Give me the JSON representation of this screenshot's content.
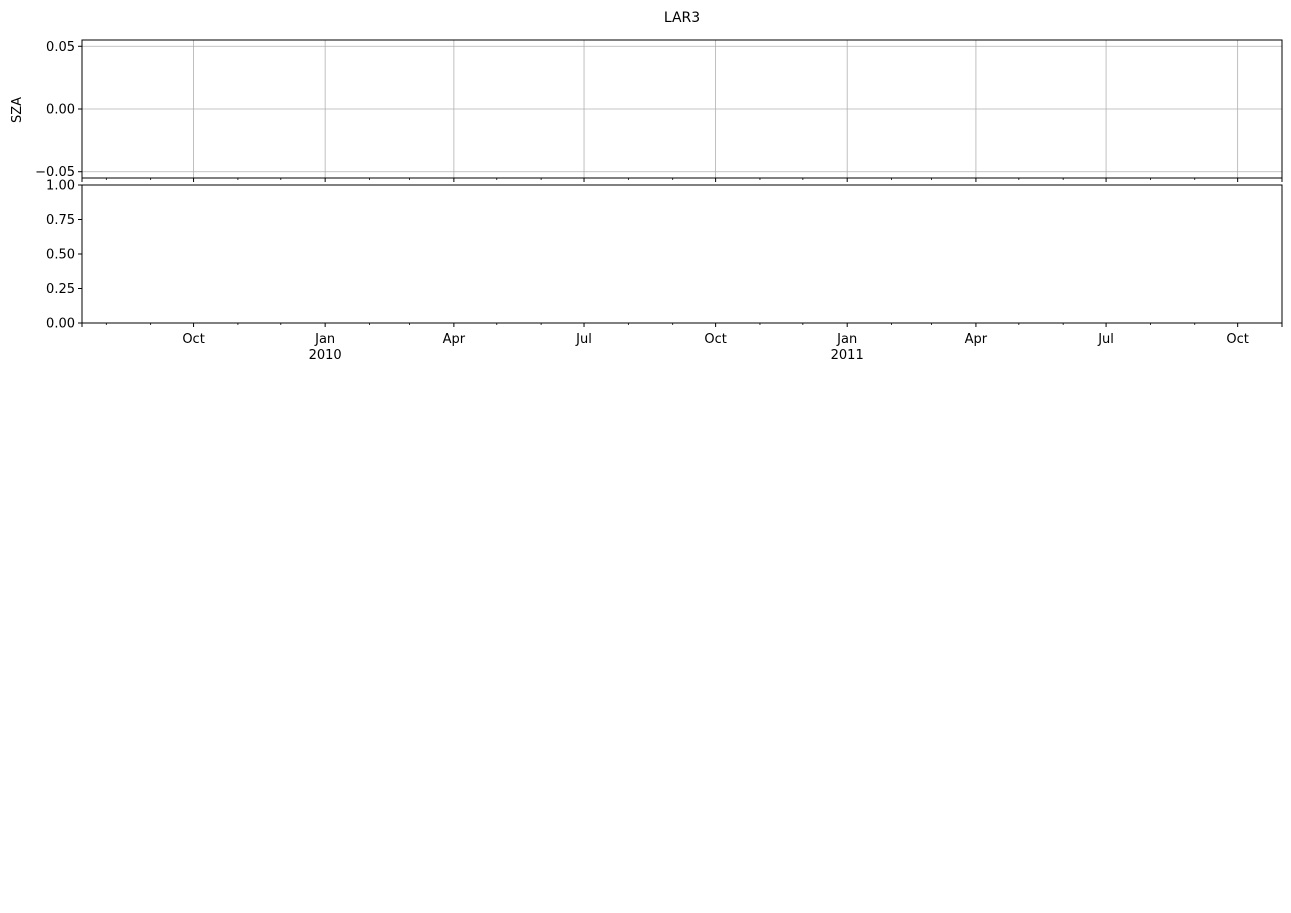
{
  "chart_data": {
    "type": "line",
    "title": "LAR3",
    "x_range": [
      "2009-07-15",
      "2011-11-01"
    ],
    "x_ticks": [
      {
        "date": "2009-10-01",
        "label": "Oct",
        "year": ""
      },
      {
        "date": "2010-01-01",
        "label": "Jan",
        "year": "2010"
      },
      {
        "date": "2010-04-01",
        "label": "Apr",
        "year": ""
      },
      {
        "date": "2010-07-01",
        "label": "Jul",
        "year": ""
      },
      {
        "date": "2010-10-01",
        "label": "Oct",
        "year": ""
      },
      {
        "date": "2011-01-01",
        "label": "Jan",
        "year": "2011"
      },
      {
        "date": "2011-04-01",
        "label": "Apr",
        "year": ""
      },
      {
        "date": "2011-07-01",
        "label": "Jul",
        "year": ""
      },
      {
        "date": "2011-10-01",
        "label": "Oct",
        "year": ""
      }
    ],
    "minor_tick_months": [
      "2009-08-01",
      "2009-09-01",
      "2009-11-01",
      "2009-12-01",
      "2010-02-01",
      "2010-03-01",
      "2010-05-01",
      "2010-06-01",
      "2010-08-01",
      "2010-09-01",
      "2010-11-01",
      "2010-12-01",
      "2011-02-01",
      "2011-03-01",
      "2011-05-01",
      "2011-06-01",
      "2011-08-01",
      "2011-09-01",
      "2011-11-01"
    ],
    "panels": [
      {
        "ylabel": "SZA",
        "ylim": [
          -0.055,
          0.055
        ],
        "yticks": [
          -0.05,
          0.0,
          0.05
        ],
        "ytick_labels": [
          "−0.05",
          "0.00",
          "0.05"
        ],
        "grid": true,
        "series": []
      },
      {
        "ylabel": "",
        "ylim": [
          0.0,
          1.0
        ],
        "yticks": [
          0.0,
          0.25,
          0.5,
          0.75,
          1.0
        ],
        "ytick_labels": [
          "0.00",
          "0.25",
          "0.50",
          "0.75",
          "1.00"
        ],
        "grid": false,
        "series": []
      }
    ]
  }
}
